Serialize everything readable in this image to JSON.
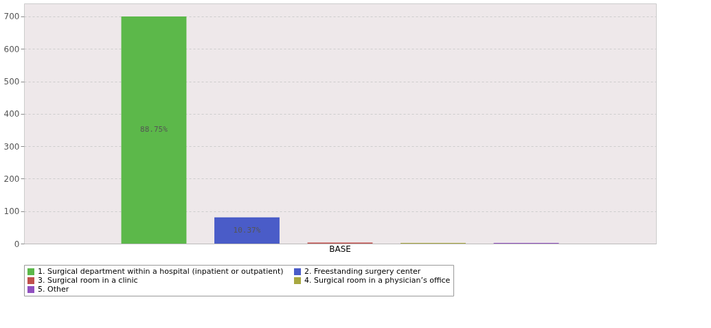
{
  "chart_data": {
    "type": "bar",
    "categories": [
      "BASE"
    ],
    "series": [
      {
        "name": "1. Surgical department within a hospital  (inpatient or outpatient)",
        "color": "#5cb84a",
        "values": [
          700
        ]
      },
      {
        "name": "2. Freestanding surgery center",
        "color": "#4a5cc8",
        "values": [
          81
        ]
      },
      {
        "name": "3. Surgical room in a clinic",
        "color": "#c0504d",
        "values": [
          3
        ]
      },
      {
        "name": "4. Surgical room in a physician’s office",
        "color": "#a8a840",
        "values": [
          2
        ]
      },
      {
        "name": "5. Other",
        "color": "#9050c0",
        "values": [
          2
        ]
      }
    ],
    "annotations": [
      "88.75%",
      "10.37%"
    ],
    "ylim": [
      0,
      740
    ],
    "yticks": [
      0,
      100,
      200,
      300,
      400,
      500,
      600,
      700
    ],
    "grid": "y",
    "legend": "bottom"
  }
}
